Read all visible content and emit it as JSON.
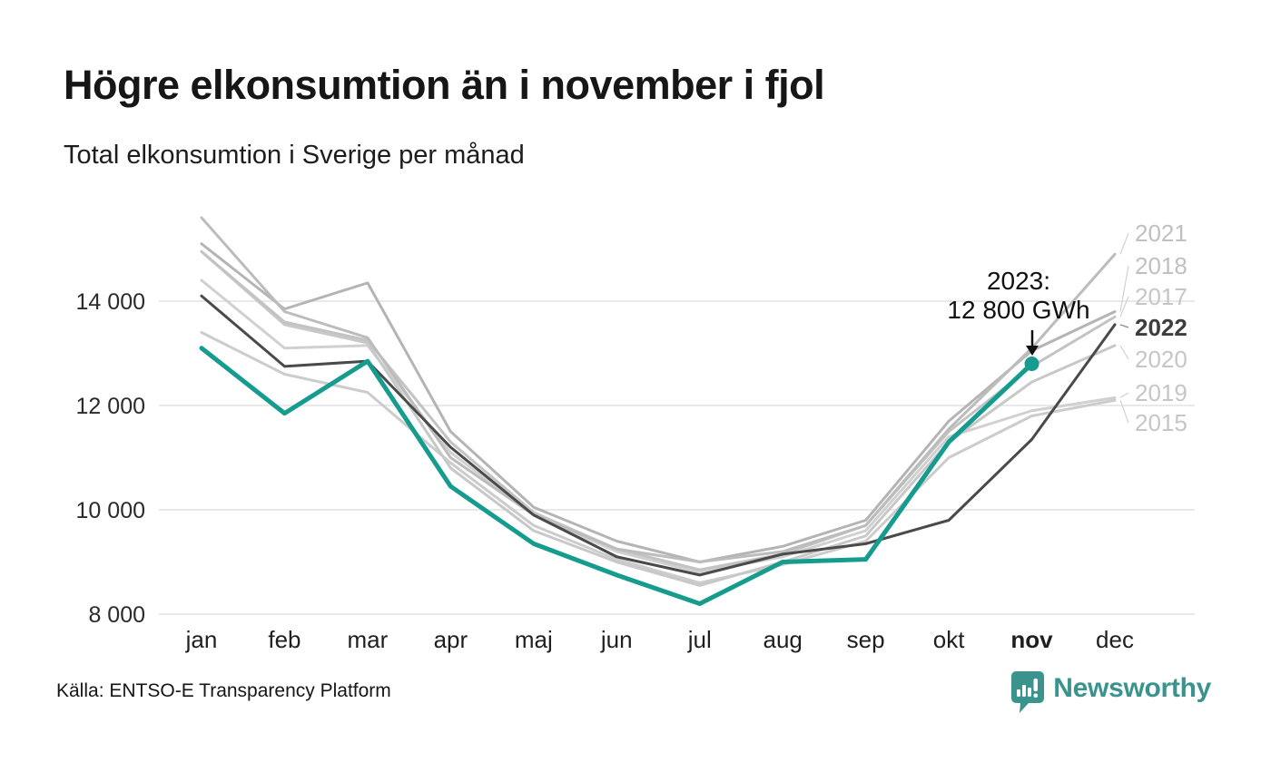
{
  "header": {
    "title": "Högre elkonsumtion än i november i fjol",
    "subtitle": "Total elkonsumtion i Sverige per månad"
  },
  "annotation": {
    "line1": "2023:",
    "line2": "12 800 GWh"
  },
  "footer": {
    "source": "Källa: ENTSO-E Transparency Platform",
    "brand": "Newsworthy"
  },
  "colors": {
    "accent_teal": "#169b8f",
    "previous_year": "#4a4a4a",
    "other_years": "#c6c6c6",
    "grid": "#e9e9ec",
    "brand_teal": "#3a948d",
    "axis_text": "#2b2b2b",
    "muted_label": "#c6c6c6"
  },
  "chart_data": {
    "type": "line",
    "title": "Högre elkonsumtion än i november i fjol",
    "subtitle": "Total elkonsumtion i Sverige per månad",
    "unit": "GWh",
    "source": "ENTSO-E Transparency Platform",
    "categories": [
      "jan",
      "feb",
      "mar",
      "apr",
      "maj",
      "jun",
      "jul",
      "aug",
      "sep",
      "okt",
      "nov",
      "dec"
    ],
    "highlight_month": "nov",
    "ylim": [
      7800,
      15800
    ],
    "y_ticks": [
      14000,
      12000,
      10000,
      8000
    ],
    "y_tick_labels": [
      "14 000",
      "12 000",
      "10 000",
      "8 000"
    ],
    "grid": "horizontal",
    "legend": "end-of-line year labels at right edge",
    "annotation": {
      "series": "2023",
      "month": "nov",
      "value": 12800,
      "text": "2023: 12 800 GWh"
    },
    "series": [
      {
        "name": "2015",
        "color": "#cccccc",
        "label_color": "#c6c6c6",
        "width": 3,
        "values": [
          13400,
          12600,
          12250,
          10900,
          9700,
          9050,
          8600,
          8950,
          9400,
          11000,
          11800,
          12100
        ]
      },
      {
        "name": "2019",
        "color": "#d0d0d0",
        "label_color": "#c6c6c6",
        "width": 3,
        "values": [
          14400,
          13100,
          13150,
          11100,
          9900,
          9200,
          8800,
          9100,
          9600,
          11400,
          11900,
          12150
        ]
      },
      {
        "name": "2020",
        "color": "#c8c8c8",
        "label_color": "#c6c6c6",
        "width": 3,
        "values": [
          14950,
          13550,
          13200,
          10800,
          9600,
          9000,
          8550,
          9000,
          9500,
          11300,
          12450,
          13150
        ]
      },
      {
        "name": "2017",
        "color": "#c3c3c3",
        "label_color": "#c6c6c6",
        "width": 3,
        "values": [
          14950,
          13600,
          13250,
          11300,
          9950,
          9250,
          8850,
          9150,
          9700,
          11500,
          12750,
          13700
        ]
      },
      {
        "name": "2018",
        "color": "#b4b4b4",
        "label_color": "#c0c0c0",
        "width": 3,
        "values": [
          15100,
          13850,
          14350,
          11500,
          10050,
          9400,
          9000,
          9300,
          9800,
          11700,
          13050,
          13800
        ]
      },
      {
        "name": "2021",
        "color": "#bcbcbc",
        "label_color": "#c0c0c0",
        "width": 3,
        "values": [
          15600,
          13800,
          13300,
          11000,
          9900,
          9250,
          9000,
          9200,
          9700,
          11550,
          13100,
          14900
        ]
      },
      {
        "name": "2022",
        "color": "#4a4a4a",
        "label_color": "#3d3d3d",
        "width": 3,
        "values": [
          14100,
          12750,
          12850,
          11200,
          9900,
          9100,
          8750,
          9150,
          9350,
          9800,
          11350,
          13550
        ]
      },
      {
        "name": "2023",
        "color": "#169b8f",
        "label_color": "#169b8f",
        "width": 5,
        "end_dot": true,
        "values": [
          13100,
          11850,
          12850,
          10450,
          9350,
          8750,
          8200,
          9000,
          9050,
          11300,
          12800
        ]
      }
    ]
  }
}
